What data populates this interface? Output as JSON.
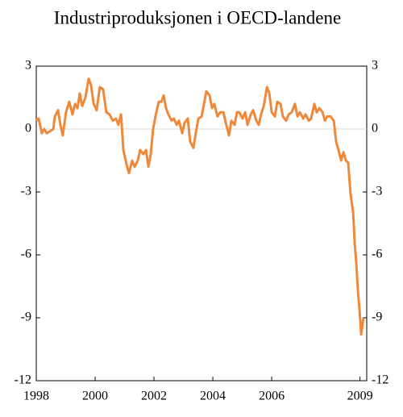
{
  "chart_data": {
    "type": "line",
    "title": "Industriproduksjonen i OECD-landene",
    "x": [
      1998.0,
      1998.08,
      1998.19,
      1998.27,
      1998.36,
      1998.47,
      1998.58,
      1998.63,
      1998.74,
      1998.82,
      1998.9,
      1999.01,
      1999.12,
      1999.23,
      1999.32,
      1999.4,
      1999.48,
      1999.56,
      1999.67,
      1999.78,
      1999.86,
      1999.95,
      2000.05,
      2000.16,
      2000.27,
      2000.38,
      2000.49,
      2000.6,
      2000.71,
      2000.79,
      2000.88,
      2000.96,
      2001.07,
      2001.15,
      2001.26,
      2001.34,
      2001.45,
      2001.53,
      2001.64,
      2001.73,
      2001.81,
      2001.89,
      2001.97,
      2002.08,
      2002.16,
      2002.25,
      2002.33,
      2002.41,
      2002.49,
      2002.6,
      2002.68,
      2002.77,
      2002.85,
      2002.96,
      2003.04,
      2003.15,
      2003.23,
      2003.34,
      2003.42,
      2003.51,
      2003.62,
      2003.7,
      2003.78,
      2003.89,
      2003.97,
      2004.05,
      2004.16,
      2004.25,
      2004.36,
      2004.44,
      2004.55,
      2004.63,
      2004.74,
      2004.82,
      2004.9,
      2005.01,
      2005.1,
      2005.18,
      2005.29,
      2005.37,
      2005.48,
      2005.56,
      2005.64,
      2005.73,
      2005.84,
      2005.92,
      2006.0,
      2006.11,
      2006.19,
      2006.3,
      2006.38,
      2006.49,
      2006.58,
      2006.68,
      2006.79,
      2006.88,
      2006.96,
      2007.07,
      2007.15,
      2007.26,
      2007.34,
      2007.45,
      2007.53,
      2007.62,
      2007.73,
      2007.81,
      2007.89,
      2008.0,
      2008.11,
      2008.19,
      2008.27,
      2008.36,
      2008.44,
      2008.52,
      2008.6,
      2008.68,
      2008.77,
      2008.82,
      2008.88,
      2008.93,
      2008.99,
      2009.04,
      2009.12
    ],
    "series": [
      {
        "color": "#f0883a",
        "values": [
          0.4,
          0.5,
          -0.2,
          0,
          -0.2,
          -0.1,
          0,
          0.6,
          0.9,
          0.2,
          -0.3,
          0.8,
          1.3,
          0.7,
          1.2,
          1.0,
          1.7,
          1.1,
          1.5,
          2.4,
          2.1,
          1.2,
          0.9,
          2.0,
          1.9,
          0.8,
          0.7,
          0.4,
          0.5,
          0.2,
          0.7,
          -1.0,
          -1.7,
          -2.1,
          -1.5,
          -1.8,
          -1.5,
          -1.0,
          -1.2,
          -1.0,
          -1.8,
          -1.2,
          0,
          0.8,
          1.3,
          1.3,
          1.6,
          1.0,
          0.7,
          0.4,
          0.5,
          0.2,
          0.4,
          -0.2,
          0.3,
          0.5,
          -0.6,
          -0.9,
          -0.2,
          0.5,
          0.6,
          1.2,
          1.8,
          1.6,
          1.0,
          1.2,
          0.6,
          0.8,
          0.8,
          0.3,
          -0.3,
          0.4,
          0.2,
          0.8,
          0.8,
          0.5,
          0.8,
          0.2,
          0.7,
          0.9,
          0.4,
          0.2,
          0.7,
          1.1,
          2.0,
          1.7,
          0.8,
          0.6,
          1.3,
          1.2,
          0.6,
          0.4,
          0.7,
          0.8,
          1.2,
          0.6,
          0.8,
          0.5,
          0.7,
          0.4,
          0.5,
          1.2,
          0.8,
          1.0,
          0.8,
          0.4,
          0.6,
          0.6,
          0.4,
          -0.6,
          -1.0,
          -1.5,
          -1.1,
          -1.5,
          -1.6,
          -3.1,
          -4.0,
          -5.4,
          -6.5,
          -7.7,
          -8.7,
          -9.8,
          -9.0
        ]
      }
    ],
    "xlim": [
      1998,
      2009.23
    ],
    "xticks": [
      1998,
      2000,
      2002,
      2004,
      2006,
      2009
    ],
    "ylim": [
      -12,
      3
    ],
    "yticks": [
      3,
      0,
      -3,
      -6,
      -9,
      -12
    ],
    "zero_line": true
  }
}
